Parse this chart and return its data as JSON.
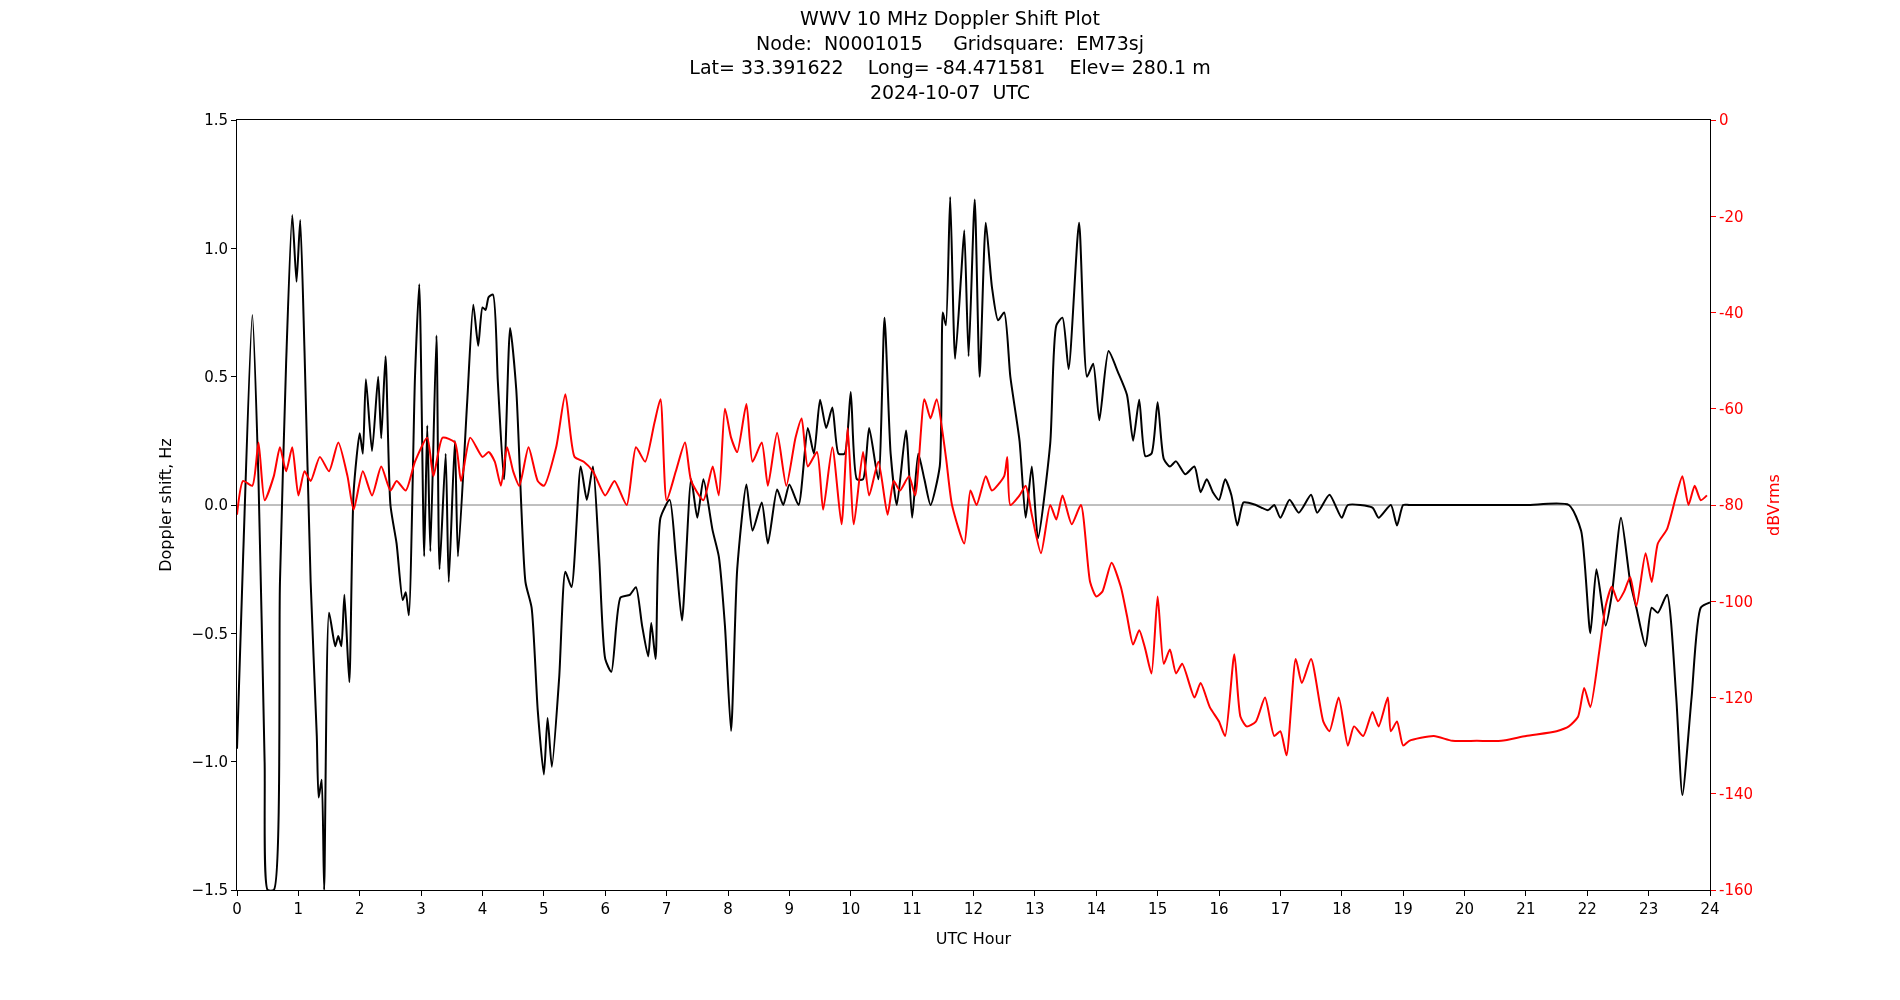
{
  "chart_data": {
    "type": "line",
    "title": "WWV 10 MHz Doppler Shift Plot\nNode:  N0001015     Gridsquare:  EM73sj\nLat= 33.391622    Long= -84.471581    Elev= 280.1 m\n2024-10-07  UTC",
    "xlabel": "UTC Hour",
    "ylabel": "Doppler shift, Hz",
    "y2label": "dBVrms",
    "xlim": [
      0,
      24
    ],
    "xticks": [
      0,
      1,
      2,
      3,
      4,
      5,
      6,
      7,
      8,
      9,
      10,
      11,
      12,
      13,
      14,
      15,
      16,
      17,
      18,
      19,
      20,
      21,
      22,
      23,
      24
    ],
    "ylim": [
      -1.5,
      1.5
    ],
    "yticks": [
      {
        "value": -1.5,
        "label": "−1.5"
      },
      {
        "value": -1.0,
        "label": "−1.0"
      },
      {
        "value": -0.5,
        "label": "−0.5"
      },
      {
        "value": 0.0,
        "label": "0.0"
      },
      {
        "value": 0.5,
        "label": "0.5"
      },
      {
        "value": 1.0,
        "label": "1.0"
      },
      {
        "value": 1.5,
        "label": "1.5"
      }
    ],
    "y2lim": [
      -160,
      0
    ],
    "y2ticks": [
      -160,
      -140,
      -120,
      -100,
      -80,
      -60,
      -40,
      -20,
      0
    ],
    "ref_lines": [
      {
        "axis": "y",
        "value": 0,
        "color": "#808080"
      }
    ],
    "grid": false,
    "line_style": "solid",
    "series": [
      {
        "color": "#000000",
        "x": [
          0,
          0.1,
          0.25,
          0.35,
          0.45,
          0.5,
          0.6,
          0.7,
          0.8,
          0.9,
          0.97,
          1.03,
          1.1,
          1.2,
          1.3,
          1.33,
          1.38,
          1.42,
          1.5,
          1.6,
          1.65,
          1.7,
          1.75,
          1.83,
          1.9,
          2.0,
          2.05,
          2.1,
          2.2,
          2.3,
          2.35,
          2.42,
          2.5,
          2.6,
          2.7,
          2.75,
          2.8,
          2.9,
          2.97,
          3.05,
          3.1,
          3.15,
          3.25,
          3.3,
          3.4,
          3.45,
          3.55,
          3.6,
          3.75,
          3.85,
          3.93,
          4.0,
          4.05,
          4.1,
          4.17,
          4.25,
          4.35,
          4.45,
          4.55,
          4.7,
          4.8,
          4.9,
          5.0,
          5.06,
          5.13,
          5.25,
          5.35,
          5.45,
          5.6,
          5.7,
          5.8,
          5.9,
          6.0,
          6.1,
          6.25,
          6.4,
          6.5,
          6.6,
          6.7,
          6.75,
          6.82,
          6.9,
          7.05,
          7.15,
          7.25,
          7.4,
          7.5,
          7.6,
          7.75,
          7.85,
          7.95,
          8.05,
          8.15,
          8.3,
          8.4,
          8.55,
          8.65,
          8.8,
          8.9,
          9.0,
          9.15,
          9.3,
          9.4,
          9.5,
          9.6,
          9.7,
          9.8,
          9.9,
          10.0,
          10.1,
          10.2,
          10.3,
          10.45,
          10.55,
          10.65,
          10.75,
          10.9,
          11.0,
          11.1,
          11.2,
          11.3,
          11.45,
          11.5,
          11.55,
          11.62,
          11.7,
          11.8,
          11.85,
          11.92,
          12.02,
          12.1,
          12.2,
          12.3,
          12.4,
          12.5,
          12.6,
          12.75,
          12.85,
          12.95,
          13.05,
          13.25,
          13.35,
          13.45,
          13.55,
          13.72,
          13.85,
          13.95,
          14.05,
          14.2,
          14.35,
          14.5,
          14.6,
          14.7,
          14.8,
          14.9,
          15.0,
          15.1,
          15.2,
          15.3,
          15.45,
          15.6,
          15.7,
          15.8,
          15.9,
          16.0,
          16.1,
          16.2,
          16.3,
          16.4,
          16.6,
          16.8,
          16.9,
          17.0,
          17.15,
          17.3,
          17.5,
          17.6,
          17.8,
          18.0,
          18.1,
          18.5,
          18.6,
          18.8,
          18.9,
          19.0,
          19.1,
          20.0,
          21.0,
          21.7,
          21.9,
          22.05,
          22.15,
          22.3,
          22.4,
          22.55,
          22.7,
          22.8,
          22.95,
          23.05,
          23.15,
          23.3,
          23.45,
          23.55,
          23.7,
          23.85,
          24
        ],
        "values": [
          -0.95,
          -0.2,
          0.74,
          0.1,
          -1.0,
          -1.5,
          -1.5,
          -0.3,
          0.55,
          1.13,
          0.87,
          1.11,
          0.6,
          -0.3,
          -0.9,
          -1.14,
          -1.07,
          -1.5,
          -0.42,
          -0.55,
          -0.51,
          -0.55,
          -0.35,
          -0.69,
          0.05,
          0.28,
          0.2,
          0.49,
          0.21,
          0.5,
          0.26,
          0.58,
          0.0,
          -0.15,
          -0.37,
          -0.34,
          -0.43,
          0.5,
          0.86,
          -0.2,
          0.31,
          -0.18,
          0.66,
          -0.25,
          0.2,
          -0.3,
          0.25,
          -0.2,
          0.4,
          0.78,
          0.62,
          0.77,
          0.76,
          0.81,
          0.82,
          0.48,
          0.1,
          0.69,
          0.45,
          -0.3,
          -0.4,
          -0.8,
          -1.05,
          -0.83,
          -1.02,
          -0.67,
          -0.26,
          -0.32,
          0.15,
          0.02,
          0.15,
          -0.2,
          -0.6,
          -0.65,
          -0.36,
          -0.35,
          -0.32,
          -0.47,
          -0.59,
          -0.46,
          -0.6,
          -0.05,
          0.02,
          -0.2,
          -0.45,
          0.1,
          -0.05,
          0.1,
          -0.1,
          -0.2,
          -0.47,
          -0.88,
          -0.25,
          0.08,
          -0.1,
          0.01,
          -0.15,
          0.06,
          0.0,
          0.08,
          0.0,
          0.3,
          0.2,
          0.41,
          0.3,
          0.38,
          0.2,
          0.2,
          0.44,
          0.1,
          0.1,
          0.3,
          0.1,
          0.73,
          0.2,
          0.0,
          0.29,
          -0.05,
          0.2,
          0.1,
          0.0,
          0.15,
          0.75,
          0.7,
          1.2,
          0.57,
          0.9,
          1.07,
          0.58,
          1.19,
          0.5,
          1.1,
          0.85,
          0.72,
          0.75,
          0.5,
          0.25,
          -0.05,
          0.15,
          -0.13,
          0.24,
          0.7,
          0.73,
          0.53,
          1.1,
          0.5,
          0.55,
          0.33,
          0.6,
          0.52,
          0.43,
          0.25,
          0.41,
          0.19,
          0.2,
          0.4,
          0.18,
          0.15,
          0.17,
          0.12,
          0.15,
          0.05,
          0.1,
          0.05,
          0.02,
          0.1,
          0.04,
          -0.08,
          0.01,
          0.0,
          -0.02,
          0.0,
          -0.05,
          0.02,
          -0.03,
          0.04,
          -0.03,
          0.04,
          -0.05,
          0.0,
          -0.01,
          -0.05,
          0.0,
          -0.08,
          0.0,
          0.0,
          0.0,
          0.0,
          0.0,
          -0.1,
          -0.5,
          -0.25,
          -0.47,
          -0.35,
          -0.05,
          -0.3,
          -0.4,
          -0.55,
          -0.4,
          -0.42,
          -0.35,
          -0.75,
          -1.13,
          -0.75,
          -0.4,
          -0.38
        ]
      },
      {
        "color": "#ff0000",
        "axis": "y2",
        "x": [
          0,
          0.1,
          0.25,
          0.35,
          0.45,
          0.6,
          0.7,
          0.8,
          0.9,
          1.0,
          1.1,
          1.2,
          1.35,
          1.5,
          1.65,
          1.8,
          1.9,
          2.05,
          2.2,
          2.35,
          2.5,
          2.6,
          2.75,
          2.9,
          3.1,
          3.2,
          3.35,
          3.55,
          3.65,
          3.8,
          4.0,
          4.1,
          4.2,
          4.3,
          4.4,
          4.5,
          4.6,
          4.75,
          4.9,
          5.0,
          5.2,
          5.35,
          5.5,
          5.65,
          5.8,
          6.0,
          6.15,
          6.35,
          6.5,
          6.65,
          6.8,
          6.9,
          7.0,
          7.15,
          7.3,
          7.4,
          7.6,
          7.75,
          7.85,
          7.95,
          8.05,
          8.15,
          8.3,
          8.4,
          8.55,
          8.65,
          8.8,
          8.95,
          9.1,
          9.2,
          9.3,
          9.45,
          9.55,
          9.7,
          9.85,
          9.95,
          10.05,
          10.2,
          10.3,
          10.45,
          10.6,
          10.7,
          10.8,
          10.95,
          11.05,
          11.2,
          11.3,
          11.4,
          11.55,
          11.65,
          11.85,
          11.95,
          12.05,
          12.2,
          12.3,
          12.5,
          12.55,
          12.6,
          12.75,
          12.85,
          12.95,
          13.1,
          13.25,
          13.35,
          13.45,
          13.6,
          13.75,
          13.9,
          14.0,
          14.1,
          14.25,
          14.4,
          14.5,
          14.6,
          14.7,
          14.8,
          14.9,
          15.0,
          15.1,
          15.2,
          15.3,
          15.4,
          15.6,
          15.7,
          15.85,
          16.0,
          16.1,
          16.25,
          16.35,
          16.45,
          16.6,
          16.75,
          16.9,
          17.0,
          17.1,
          17.25,
          17.35,
          17.5,
          17.7,
          17.8,
          17.95,
          18.1,
          18.2,
          18.35,
          18.5,
          18.6,
          18.75,
          18.8,
          18.9,
          19.0,
          19.1,
          19.5,
          19.8,
          20.2,
          20.6,
          21.0,
          21.5,
          21.7,
          21.85,
          21.95,
          22.05,
          22.2,
          22.3,
          22.4,
          22.5,
          22.6,
          22.7,
          22.8,
          22.95,
          23.05,
          23.15,
          23.3,
          23.45,
          23.55,
          23.65,
          23.75,
          23.85,
          23.95
        ],
        "values": [
          -82,
          -75,
          -76,
          -67,
          -79,
          -74,
          -68,
          -73,
          -68,
          -78,
          -73,
          -75,
          -70,
          -73,
          -67,
          -74,
          -81,
          -73,
          -78,
          -72,
          -77,
          -75,
          -77,
          -71,
          -66,
          -74,
          -66,
          -67,
          -75,
          -66,
          -70,
          -69,
          -71,
          -76,
          -68,
          -73,
          -76,
          -68,
          -75,
          -76,
          -68,
          -57,
          -70,
          -71,
          -73,
          -78,
          -75,
          -80,
          -68,
          -71,
          -63,
          -58,
          -79,
          -73,
          -67,
          -75,
          -79,
          -72,
          -78,
          -60,
          -66,
          -69,
          -59,
          -71,
          -67,
          -76,
          -65,
          -76,
          -66,
          -62,
          -72,
          -69,
          -81,
          -68,
          -84,
          -64,
          -84,
          -69,
          -78,
          -71,
          -82,
          -75,
          -77,
          -74,
          -78,
          -58,
          -62,
          -58,
          -70,
          -80,
          -88,
          -77,
          -80,
          -74,
          -77,
          -74,
          -70,
          -80,
          -78,
          -76,
          -82,
          -90,
          -80,
          -83,
          -78,
          -84,
          -80,
          -96,
          -99,
          -98,
          -92,
          -97,
          -103,
          -109,
          -106,
          -110,
          -115,
          -99,
          -113,
          -110,
          -115,
          -113,
          -120,
          -117,
          -122,
          -125,
          -128,
          -111,
          -124,
          -126,
          -125,
          -120,
          -128,
          -127,
          -132,
          -112,
          -117,
          -112,
          -125,
          -127,
          -120,
          -130,
          -126,
          -128,
          -123,
          -126,
          -120,
          -127,
          -125,
          -130,
          -129,
          -128,
          -129,
          -129,
          -129,
          -128,
          -127,
          -126,
          -124,
          -118,
          -122,
          -110,
          -101,
          -97,
          -100,
          -98,
          -95,
          -101,
          -90,
          -96,
          -88,
          -85,
          -78,
          -74,
          -80,
          -76,
          -79,
          -78
        ]
      }
    ]
  }
}
